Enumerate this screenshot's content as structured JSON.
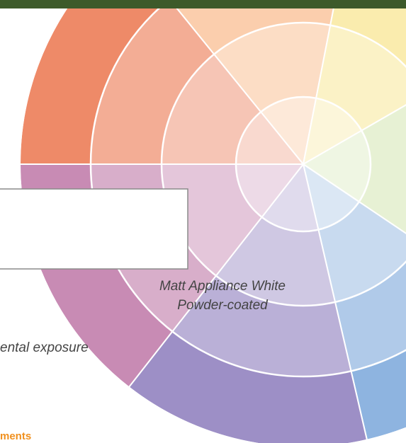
{
  "caption": {
    "line1": "Matt Appliance White",
    "line2": "Powder-coated"
  },
  "partial_text": "ental exposure",
  "partial_heading": "ments"
}
